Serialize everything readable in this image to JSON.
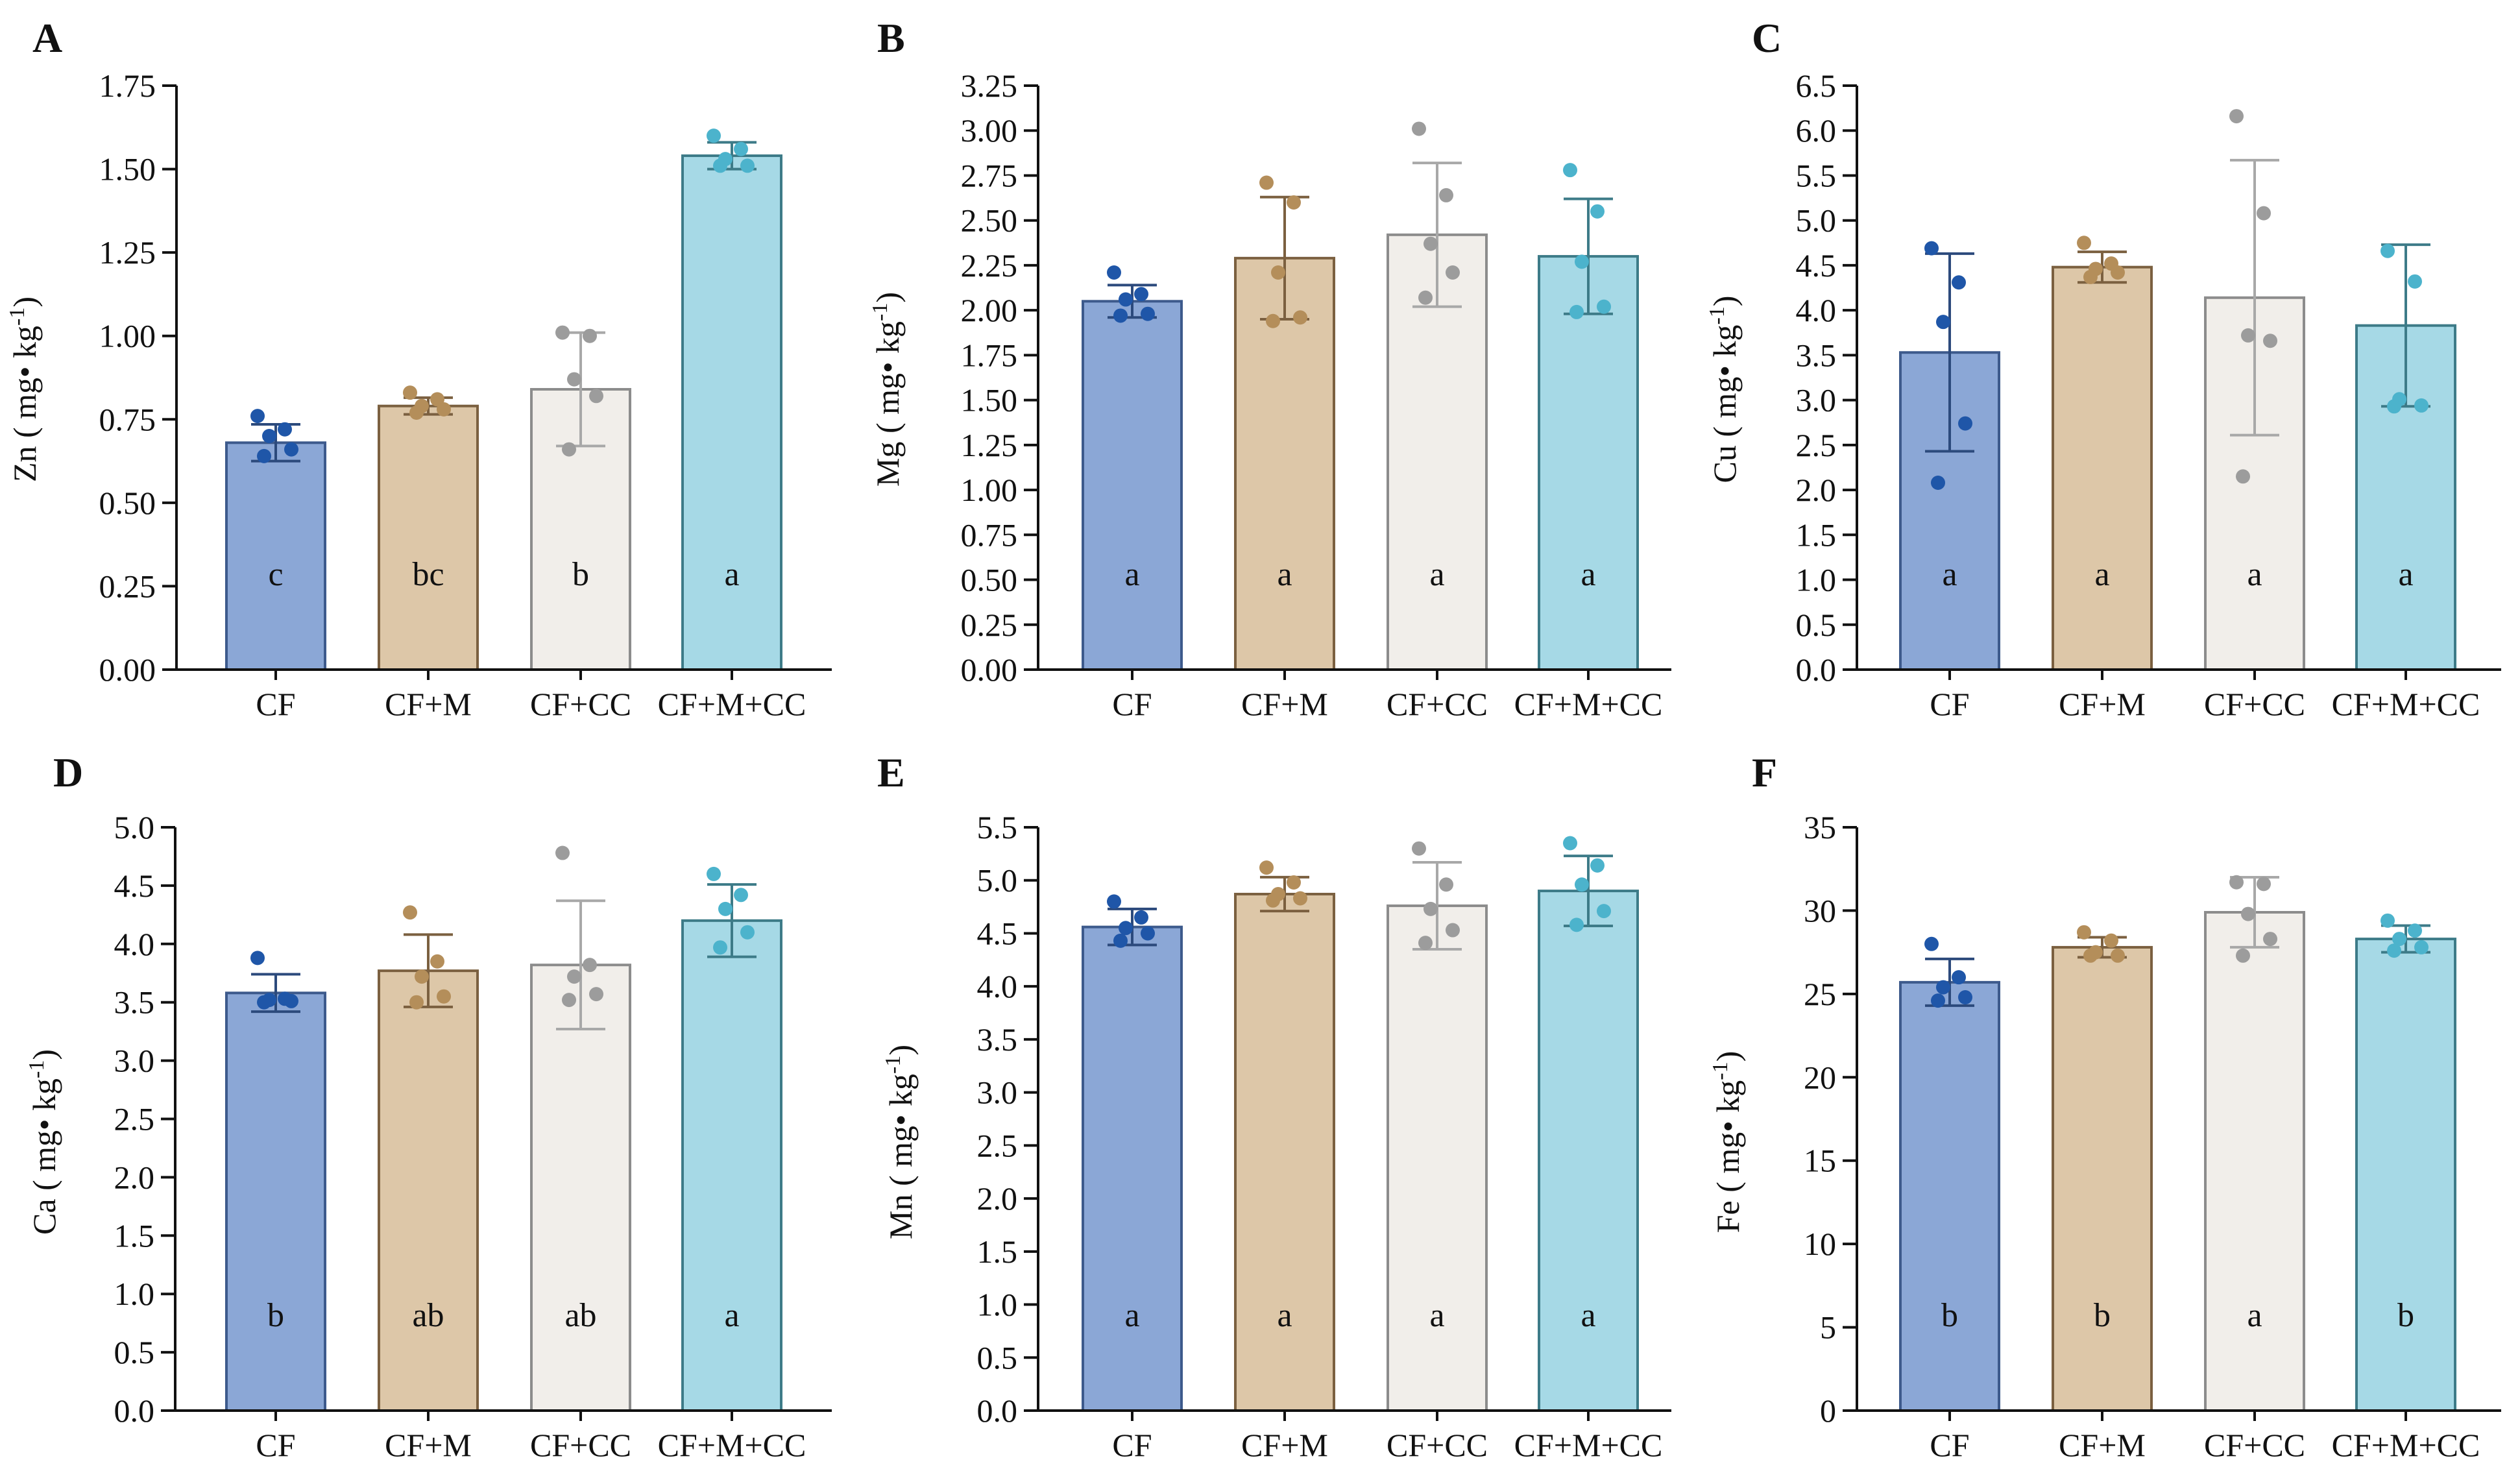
{
  "figure": {
    "categories": [
      "CF",
      "CF+M",
      "CF+CC",
      "CF+M+CC"
    ],
    "colors": {
      "fills": [
        "#8ba7d6",
        "#ddc7a8",
        "#f1eeea",
        "#a6d9e6"
      ],
      "strokes": [
        "#3d5a8c",
        "#7b6040",
        "#8c8c8c",
        "#3d7b88"
      ],
      "points": [
        "#1f56a8",
        "#b48e5a",
        "#9c9c9c",
        "#4cb3cc"
      ],
      "errors": [
        "#2c4a7c",
        "#7b6040",
        "#a8a8a8",
        "#3d7b88"
      ]
    }
  },
  "chart_data": [
    {
      "panel": "A",
      "type": "bar",
      "title": "",
      "ylabel": "Zn ( mg• kg",
      "ylabel_sup": "-1",
      "ylabel_close": ")",
      "categories": [
        "CF",
        "CF+M",
        "CF+CC",
        "CF+M+CC"
      ],
      "ylim": [
        0,
        1.75
      ],
      "yticks": [
        "0.00",
        "0.25",
        "0.50",
        "0.75",
        "1.00",
        "1.25",
        "1.50",
        "1.75"
      ],
      "values": [
        0.68,
        0.79,
        0.84,
        1.54
      ],
      "errors": [
        0.055,
        0.025,
        0.17,
        0.04
      ],
      "points": [
        [
          0.76,
          0.72,
          0.7,
          0.66,
          0.64
        ],
        [
          0.83,
          0.81,
          0.79,
          0.78,
          0.77
        ],
        [
          1.01,
          1.0,
          0.87,
          0.82,
          0.66
        ],
        [
          1.6,
          1.56,
          1.53,
          1.51,
          1.51
        ]
      ],
      "letters": [
        "c",
        "bc",
        "b",
        "a"
      ]
    },
    {
      "panel": "B",
      "type": "bar",
      "title": "",
      "ylabel": "Mg ( mg• kg",
      "ylabel_sup": "-1",
      "ylabel_close": ")",
      "categories": [
        "CF",
        "CF+M",
        "CF+CC",
        "CF+M+CC"
      ],
      "ylim": [
        0,
        3.25
      ],
      "yticks": [
        "0.00",
        "0.25",
        "0.50",
        "0.75",
        "1.00",
        "1.25",
        "1.50",
        "1.75",
        "2.00",
        "2.25",
        "2.50",
        "2.75",
        "3.00",
        "3.25"
      ],
      "values": [
        2.05,
        2.29,
        2.42,
        2.3
      ],
      "errors": [
        0.09,
        0.34,
        0.4,
        0.32
      ],
      "points": [
        [
          2.21,
          2.09,
          2.06,
          1.98,
          1.97
        ],
        [
          2.71,
          2.6,
          2.21,
          1.96,
          1.94
        ],
        [
          3.01,
          2.64,
          2.37,
          2.21,
          2.07
        ],
        [
          2.78,
          2.55,
          2.27,
          2.02,
          1.99
        ]
      ],
      "letters": [
        "a",
        "a",
        "a",
        "a"
      ]
    },
    {
      "panel": "C",
      "type": "bar",
      "title": "",
      "ylabel": "Cu ( mg• kg",
      "ylabel_sup": "-1",
      "ylabel_close": ")",
      "categories": [
        "CF",
        "CF+M",
        "CF+CC",
        "CF+M+CC"
      ],
      "ylim": [
        0,
        6.5
      ],
      "yticks": [
        "0.0",
        "0.5",
        "1.0",
        "1.5",
        "2.0",
        "2.5",
        "3.0",
        "3.5",
        "4.0",
        "4.5",
        "5.0",
        "5.5",
        "6.0",
        "6.5"
      ],
      "values": [
        3.53,
        4.48,
        4.14,
        3.83
      ],
      "errors": [
        1.1,
        0.17,
        1.53,
        0.9
      ],
      "points": [
        [
          4.69,
          4.31,
          3.87,
          2.74,
          2.08
        ],
        [
          4.75,
          4.52,
          4.46,
          4.42,
          4.37
        ],
        [
          6.16,
          5.08,
          3.72,
          3.66,
          2.15
        ],
        [
          4.66,
          4.32,
          3.01,
          2.94,
          2.93
        ]
      ],
      "letters": [
        "a",
        "a",
        "a",
        "a"
      ]
    },
    {
      "panel": "D",
      "type": "bar",
      "title": "",
      "ylabel": "Ca ( mg• kg",
      "ylabel_sup": "-1",
      "ylabel_close": ")",
      "categories": [
        "CF",
        "CF+M",
        "CF+CC",
        "CF+M+CC"
      ],
      "ylim": [
        0,
        5.0
      ],
      "yticks": [
        "0.0",
        "0.5",
        "1.0",
        "1.5",
        "2.0",
        "2.5",
        "3.0",
        "3.5",
        "4.0",
        "4.5",
        "5.0"
      ],
      "values": [
        3.58,
        3.77,
        3.82,
        4.2
      ],
      "errors": [
        0.16,
        0.31,
        0.55,
        0.31
      ],
      "points": [
        [
          3.88,
          3.53,
          3.52,
          3.51,
          3.5
        ],
        [
          4.27,
          3.85,
          3.72,
          3.55,
          3.5
        ],
        [
          4.78,
          3.82,
          3.72,
          3.57,
          3.52
        ],
        [
          4.6,
          4.42,
          4.3,
          4.1,
          3.97
        ]
      ],
      "letters": [
        "b",
        "ab",
        "ab",
        "a"
      ]
    },
    {
      "panel": "E",
      "type": "bar",
      "title": "",
      "ylabel": "Mn ( mg• kg",
      "ylabel_sup": "-1",
      "ylabel_close": ")",
      "categories": [
        "CF",
        "CF+M",
        "CF+CC",
        "CF+M+CC"
      ],
      "ylim": [
        0,
        5.5
      ],
      "yticks": [
        "0.0",
        "0.5",
        "1.0",
        "1.5",
        "2.0",
        "2.5",
        "3.0",
        "3.5",
        "4.0",
        "4.5",
        "5.0",
        "5.5"
      ],
      "values": [
        4.56,
        4.87,
        4.76,
        4.9
      ],
      "errors": [
        0.17,
        0.16,
        0.41,
        0.33
      ],
      "points": [
        [
          4.8,
          4.65,
          4.55,
          4.5,
          4.43
        ],
        [
          5.12,
          4.98,
          4.87,
          4.83,
          4.81
        ],
        [
          5.3,
          4.96,
          4.73,
          4.53,
          4.41
        ],
        [
          5.35,
          5.14,
          4.96,
          4.71,
          4.58
        ]
      ],
      "letters": [
        "a",
        "a",
        "a",
        "a"
      ]
    },
    {
      "panel": "F",
      "type": "bar",
      "title": "",
      "ylabel": "Fe ( mg• kg",
      "ylabel_sup": "-1",
      "ylabel_close": ")",
      "categories": [
        "CF",
        "CF+M",
        "CF+CC",
        "CF+M+CC"
      ],
      "ylim": [
        0,
        35
      ],
      "yticks": [
        "0",
        "5",
        "10",
        "15",
        "20",
        "25",
        "30",
        "35"
      ],
      "values": [
        25.7,
        27.8,
        29.9,
        28.3
      ],
      "errors": [
        1.4,
        0.6,
        2.1,
        0.8
      ],
      "points": [
        [
          28.0,
          26.0,
          25.4,
          24.8,
          24.6
        ],
        [
          28.7,
          28.2,
          27.5,
          27.3,
          27.3
        ],
        [
          31.7,
          31.6,
          29.8,
          28.3,
          27.3
        ],
        [
          29.4,
          28.8,
          28.3,
          27.8,
          27.6
        ]
      ],
      "letters": [
        "b",
        "b",
        "a",
        "b"
      ]
    }
  ]
}
